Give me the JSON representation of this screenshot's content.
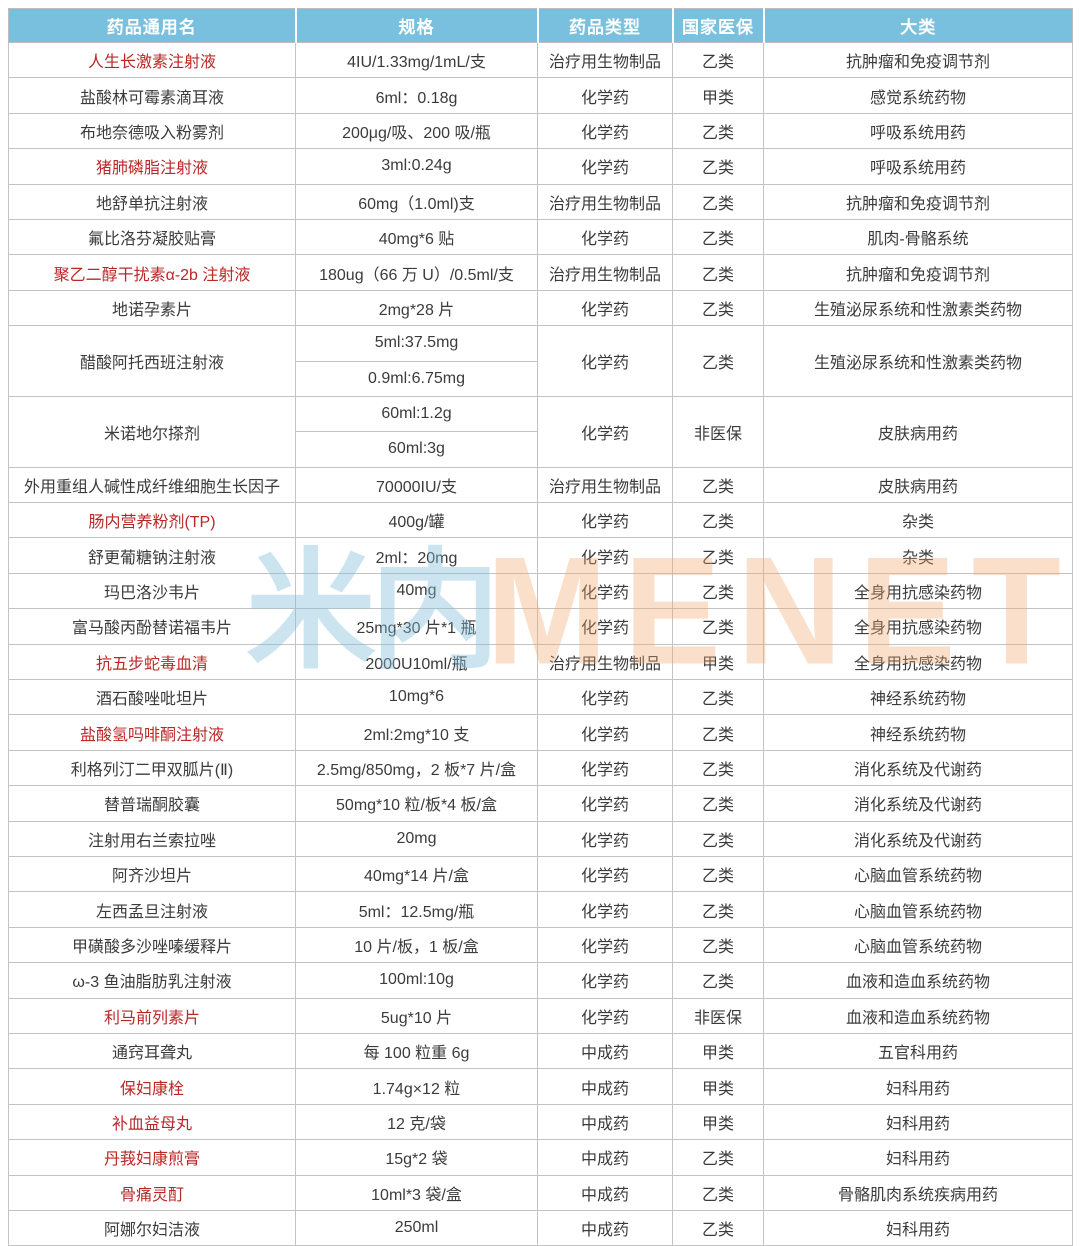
{
  "colors": {
    "header_bg": "#79C0DE",
    "header_text": "#FFFFFF",
    "body_text": "#3B3B3B",
    "red_text": "#BB2727",
    "border": "#C3C3C3",
    "watermark_blue": "#7DBCD8",
    "watermark_orange": "#F2A66A"
  },
  "watermark": {
    "cn": "米内",
    "en": "MENET"
  },
  "table": {
    "headers": [
      {
        "label": "药品通用名"
      },
      {
        "label": "规格"
      },
      {
        "label": "药品类型"
      },
      {
        "label": "国家医保"
      },
      {
        "label": "大类"
      }
    ],
    "rows": [
      {
        "name": "人生长激素注射液",
        "red": true,
        "specs": [
          "4IU/1.33mg/1mL/支"
        ],
        "type": "治疗用生物制品",
        "insurance": "乙类",
        "category": "抗肿瘤和免疫调节剂"
      },
      {
        "name": "盐酸林可霉素滴耳液",
        "red": false,
        "specs": [
          "6ml：0.18g"
        ],
        "type": "化学药",
        "insurance": "甲类",
        "category": "感觉系统药物"
      },
      {
        "name": "布地奈德吸入粉雾剂",
        "red": false,
        "specs": [
          "200μg/吸、200 吸/瓶"
        ],
        "type": "化学药",
        "insurance": "乙类",
        "category": "呼吸系统用药"
      },
      {
        "name": "猪肺磷脂注射液",
        "red": true,
        "specs": [
          "3ml:0.24g"
        ],
        "type": "化学药",
        "insurance": "乙类",
        "category": "呼吸系统用药"
      },
      {
        "name": "地舒单抗注射液",
        "red": false,
        "specs": [
          "60mg（1.0ml)支"
        ],
        "type": "治疗用生物制品",
        "insurance": "乙类",
        "category": "抗肿瘤和免疫调节剂"
      },
      {
        "name": "氟比洛芬凝胶贴膏",
        "red": false,
        "specs": [
          "40mg*6 贴"
        ],
        "type": "化学药",
        "insurance": "乙类",
        "category": "肌肉-骨骼系统"
      },
      {
        "name": "聚乙二醇干扰素α-2b 注射液",
        "red": true,
        "specs": [
          "180ug（66 万 U）/0.5ml/支"
        ],
        "type": "治疗用生物制品",
        "insurance": "乙类",
        "category": "抗肿瘤和免疫调节剂"
      },
      {
        "name": "地诺孕素片",
        "red": false,
        "specs": [
          "2mg*28 片"
        ],
        "type": "化学药",
        "insurance": "乙类",
        "category": "生殖泌尿系统和性激素类药物"
      },
      {
        "name": "醋酸阿托西班注射液",
        "red": false,
        "specs": [
          "5ml:37.5mg",
          "0.9ml:6.75mg"
        ],
        "type": "化学药",
        "insurance": "乙类",
        "category": "生殖泌尿系统和性激素类药物"
      },
      {
        "name": "米诺地尔搽剂",
        "red": false,
        "specs": [
          "60ml:1.2g",
          "60ml:3g"
        ],
        "type": "化学药",
        "insurance": "非医保",
        "category": "皮肤病用药"
      },
      {
        "name": "外用重组人碱性成纤维细胞生长因子",
        "red": false,
        "specs": [
          "70000IU/支"
        ],
        "type": "治疗用生物制品",
        "insurance": "乙类",
        "category": "皮肤病用药"
      },
      {
        "name": "肠内营养粉剂(TP)",
        "red": true,
        "specs": [
          "400g/罐"
        ],
        "type": "化学药",
        "insurance": "乙类",
        "category": "杂类"
      },
      {
        "name": "舒更葡糖钠注射液",
        "red": false,
        "specs": [
          "2ml：20mg"
        ],
        "type": "化学药",
        "insurance": "乙类",
        "category": "杂类"
      },
      {
        "name": "玛巴洛沙韦片",
        "red": false,
        "specs": [
          "40mg"
        ],
        "type": "化学药",
        "insurance": "乙类",
        "category": "全身用抗感染药物"
      },
      {
        "name": "富马酸丙酚替诺福韦片",
        "red": false,
        "specs": [
          "25mg*30 片*1 瓶"
        ],
        "type": "化学药",
        "insurance": "乙类",
        "category": "全身用抗感染药物"
      },
      {
        "name": "抗五步蛇毒血清",
        "red": true,
        "specs": [
          "2000U10ml/瓶"
        ],
        "type": "治疗用生物制品",
        "insurance": "甲类",
        "category": "全身用抗感染药物"
      },
      {
        "name": "酒石酸唑吡坦片",
        "red": false,
        "specs": [
          "10mg*6"
        ],
        "type": "化学药",
        "insurance": "乙类",
        "category": "神经系统药物"
      },
      {
        "name": "盐酸氢吗啡酮注射液",
        "red": true,
        "specs": [
          "2ml:2mg*10 支"
        ],
        "type": "化学药",
        "insurance": "乙类",
        "category": "神经系统药物"
      },
      {
        "name": "利格列汀二甲双胍片(Ⅱ)",
        "red": false,
        "specs": [
          "2.5mg/850mg，2 板*7 片/盒"
        ],
        "type": "化学药",
        "insurance": "乙类",
        "category": "消化系统及代谢药"
      },
      {
        "name": "替普瑞酮胶囊",
        "red": false,
        "specs": [
          "50mg*10 粒/板*4 板/盒"
        ],
        "type": "化学药",
        "insurance": "乙类",
        "category": "消化系统及代谢药"
      },
      {
        "name": "注射用右兰索拉唑",
        "red": false,
        "specs": [
          "20mg"
        ],
        "type": "化学药",
        "insurance": "乙类",
        "category": "消化系统及代谢药"
      },
      {
        "name": "阿齐沙坦片",
        "red": false,
        "specs": [
          "40mg*14 片/盒"
        ],
        "type": "化学药",
        "insurance": "乙类",
        "category": "心脑血管系统药物"
      },
      {
        "name": "左西孟旦注射液",
        "red": false,
        "specs": [
          "5ml：12.5mg/瓶"
        ],
        "type": "化学药",
        "insurance": "乙类",
        "category": "心脑血管系统药物"
      },
      {
        "name": "甲磺酸多沙唑嗪缓释片",
        "red": false,
        "specs": [
          "10 片/板，1 板/盒"
        ],
        "type": "化学药",
        "insurance": "乙类",
        "category": "心脑血管系统药物"
      },
      {
        "name": "ω-3 鱼油脂肪乳注射液",
        "red": false,
        "specs": [
          "100ml:10g"
        ],
        "type": "化学药",
        "insurance": "乙类",
        "category": "血液和造血系统药物"
      },
      {
        "name": "利马前列素片",
        "red": true,
        "specs": [
          "5ug*10 片"
        ],
        "type": "化学药",
        "insurance": "非医保",
        "category": "血液和造血系统药物"
      },
      {
        "name": "通窍耳聋丸",
        "red": false,
        "specs": [
          "每 100 粒重 6g"
        ],
        "type": "中成药",
        "insurance": "甲类",
        "category": "五官科用药"
      },
      {
        "name": "保妇康栓",
        "red": true,
        "specs": [
          "1.74g×12 粒"
        ],
        "type": "中成药",
        "insurance": "甲类",
        "category": "妇科用药"
      },
      {
        "name": "补血益母丸",
        "red": true,
        "specs": [
          "12 克/袋"
        ],
        "type": "中成药",
        "insurance": "甲类",
        "category": "妇科用药"
      },
      {
        "name": "丹莪妇康煎膏",
        "red": true,
        "specs": [
          "15g*2 袋"
        ],
        "type": "中成药",
        "insurance": "乙类",
        "category": "妇科用药"
      },
      {
        "name": "骨痛灵酊",
        "red": true,
        "specs": [
          "10ml*3 袋/盒"
        ],
        "type": "中成药",
        "insurance": "乙类",
        "category": "骨骼肌肉系统疾病用药"
      },
      {
        "name": "阿娜尔妇洁液",
        "red": false,
        "specs": [
          "250ml"
        ],
        "type": "中成药",
        "insurance": "乙类",
        "category": "妇科用药"
      }
    ]
  }
}
